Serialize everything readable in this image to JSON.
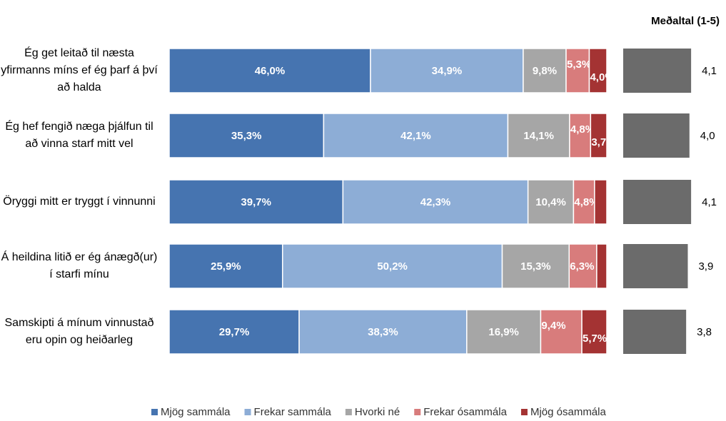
{
  "chart_data": [
    {
      "type": "stacked-bar-horizontal",
      "categories": [
        "Ég get leitað til næsta yfirmanns míns ef ég þarf á því að halda",
        "Ég hef fengið næga þjálfun til að vinna starf mitt vel",
        "Öryggi mitt er tryggt í vinnunni",
        "Á heildina litið er ég ánægð(ur) í starfi mínu",
        "Samskipti á mínum vinnustað eru opin og heiðarleg"
      ],
      "xlim": [
        0,
        100
      ],
      "legend": "bottom",
      "series": [
        {
          "name": "Mjög sammála",
          "color": "#4674b0",
          "values": [
            46.0,
            35.3,
            39.7,
            25.9,
            29.7
          ],
          "value_labels": [
            "46,0%",
            "35,3%",
            "39,7%",
            "25,9%",
            "29,7%"
          ]
        },
        {
          "name": "Frekar sammála",
          "color": "#8dadd6",
          "values": [
            34.9,
            42.1,
            42.3,
            50.2,
            38.3
          ],
          "value_labels": [
            "34,9%",
            "42,1%",
            "42,3%",
            "50,2%",
            "38,3%"
          ]
        },
        {
          "name": "Hvorki né",
          "color": "#a6a6a6",
          "values": [
            9.8,
            14.1,
            10.4,
            15.3,
            16.9
          ],
          "value_labels": [
            "9,8%",
            "14,1%",
            "10,4%",
            "15,3%",
            "16,9%"
          ]
        },
        {
          "name": "Frekar ósammála",
          "color": "#d87c7c",
          "values": [
            5.3,
            4.8,
            4.8,
            6.3,
            9.4
          ],
          "value_labels": [
            "5,3%",
            "4,8%",
            "4,8%",
            "6,3%",
            "9,4%"
          ]
        },
        {
          "name": "Mjög ósammála",
          "color": "#a43333",
          "values": [
            4.0,
            3.7,
            2.8,
            2.3,
            5.7
          ],
          "value_labels": [
            "4,0%",
            "3,7%",
            null,
            null,
            "5,7%"
          ]
        }
      ]
    },
    {
      "type": "bar-horizontal",
      "title": "Meðaltal (1-5)",
      "color": "#6b6b6b",
      "xlim": [
        0,
        5
      ],
      "values": [
        4.1,
        4.0,
        4.1,
        3.9,
        3.8
      ],
      "value_labels": [
        "4,1",
        "4,0",
        "4,1",
        "3,9",
        "3,8"
      ]
    }
  ]
}
